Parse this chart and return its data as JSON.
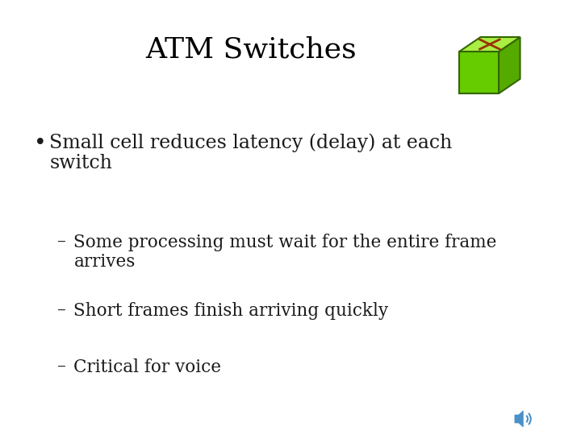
{
  "title": "ATM Switches",
  "title_fontsize": 26,
  "title_color": "#000000",
  "background_color": "#ffffff",
  "bullet_point_line1": "Small cell reduces latency (delay) at each",
  "bullet_point_line2": "switch",
  "sub_bullets": [
    [
      "Some processing must wait for the entire frame",
      "arrives"
    ],
    [
      "Short frames finish arriving quickly"
    ],
    [
      "Critical for voice"
    ]
  ],
  "bullet_fontsize": 17,
  "sub_bullet_fontsize": 15.5,
  "text_color": "#1a1a1a",
  "cube_color_front": "#66cc00",
  "cube_color_top": "#aaee44",
  "cube_color_right": "#55aa00",
  "cube_edge_color": "#336600",
  "cube_x_color": "#993300",
  "speaker_color": "#4a90c8"
}
